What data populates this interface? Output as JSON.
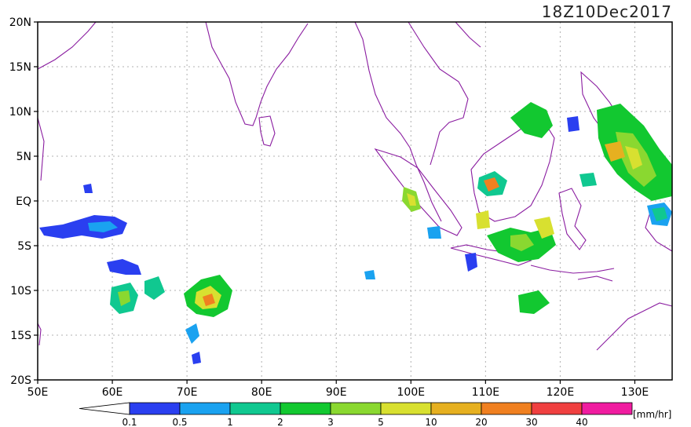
{
  "timestamp": "18Z10Dec2017",
  "units_label": "[mm/hr]",
  "frame": {
    "lon_range": [
      50,
      135
    ],
    "lat_range": [
      -20,
      20
    ]
  },
  "x_ticks": [
    {
      "value": 50,
      "label": "50E"
    },
    {
      "value": 60,
      "label": "60E"
    },
    {
      "value": 70,
      "label": "70E"
    },
    {
      "value": 80,
      "label": "80E"
    },
    {
      "value": 90,
      "label": "90E"
    },
    {
      "value": 100,
      "label": "100E"
    },
    {
      "value": 110,
      "label": "110E"
    },
    {
      "value": 120,
      "label": "120E"
    },
    {
      "value": 130,
      "label": "130E"
    }
  ],
  "y_ticks": [
    {
      "value": 20,
      "label": "20N"
    },
    {
      "value": 15,
      "label": "15N"
    },
    {
      "value": 10,
      "label": "10N"
    },
    {
      "value": 5,
      "label": "5N"
    },
    {
      "value": 0,
      "label": "EQ"
    },
    {
      "value": -5,
      "label": "5S"
    },
    {
      "value": -10,
      "label": "10S"
    },
    {
      "value": -15,
      "label": "15S"
    },
    {
      "value": -20,
      "label": "20S"
    }
  ],
  "colorbar": {
    "labels": [
      "0.1",
      "0.5",
      "1",
      "2",
      "3",
      "5",
      "10",
      "20",
      "30",
      "40"
    ],
    "colors": [
      "#2a3ff0",
      "#1aa2f0",
      "#10c890",
      "#12c830",
      "#8ad830",
      "#d8e030",
      "#e6b020",
      "#f08020",
      "#f04040",
      "#f01ca0"
    ],
    "under_color": "#ffffff",
    "over_color": "#f01ca0"
  },
  "coastline_color": "#8a1ca0",
  "grid_color": "#b0b0b0"
}
